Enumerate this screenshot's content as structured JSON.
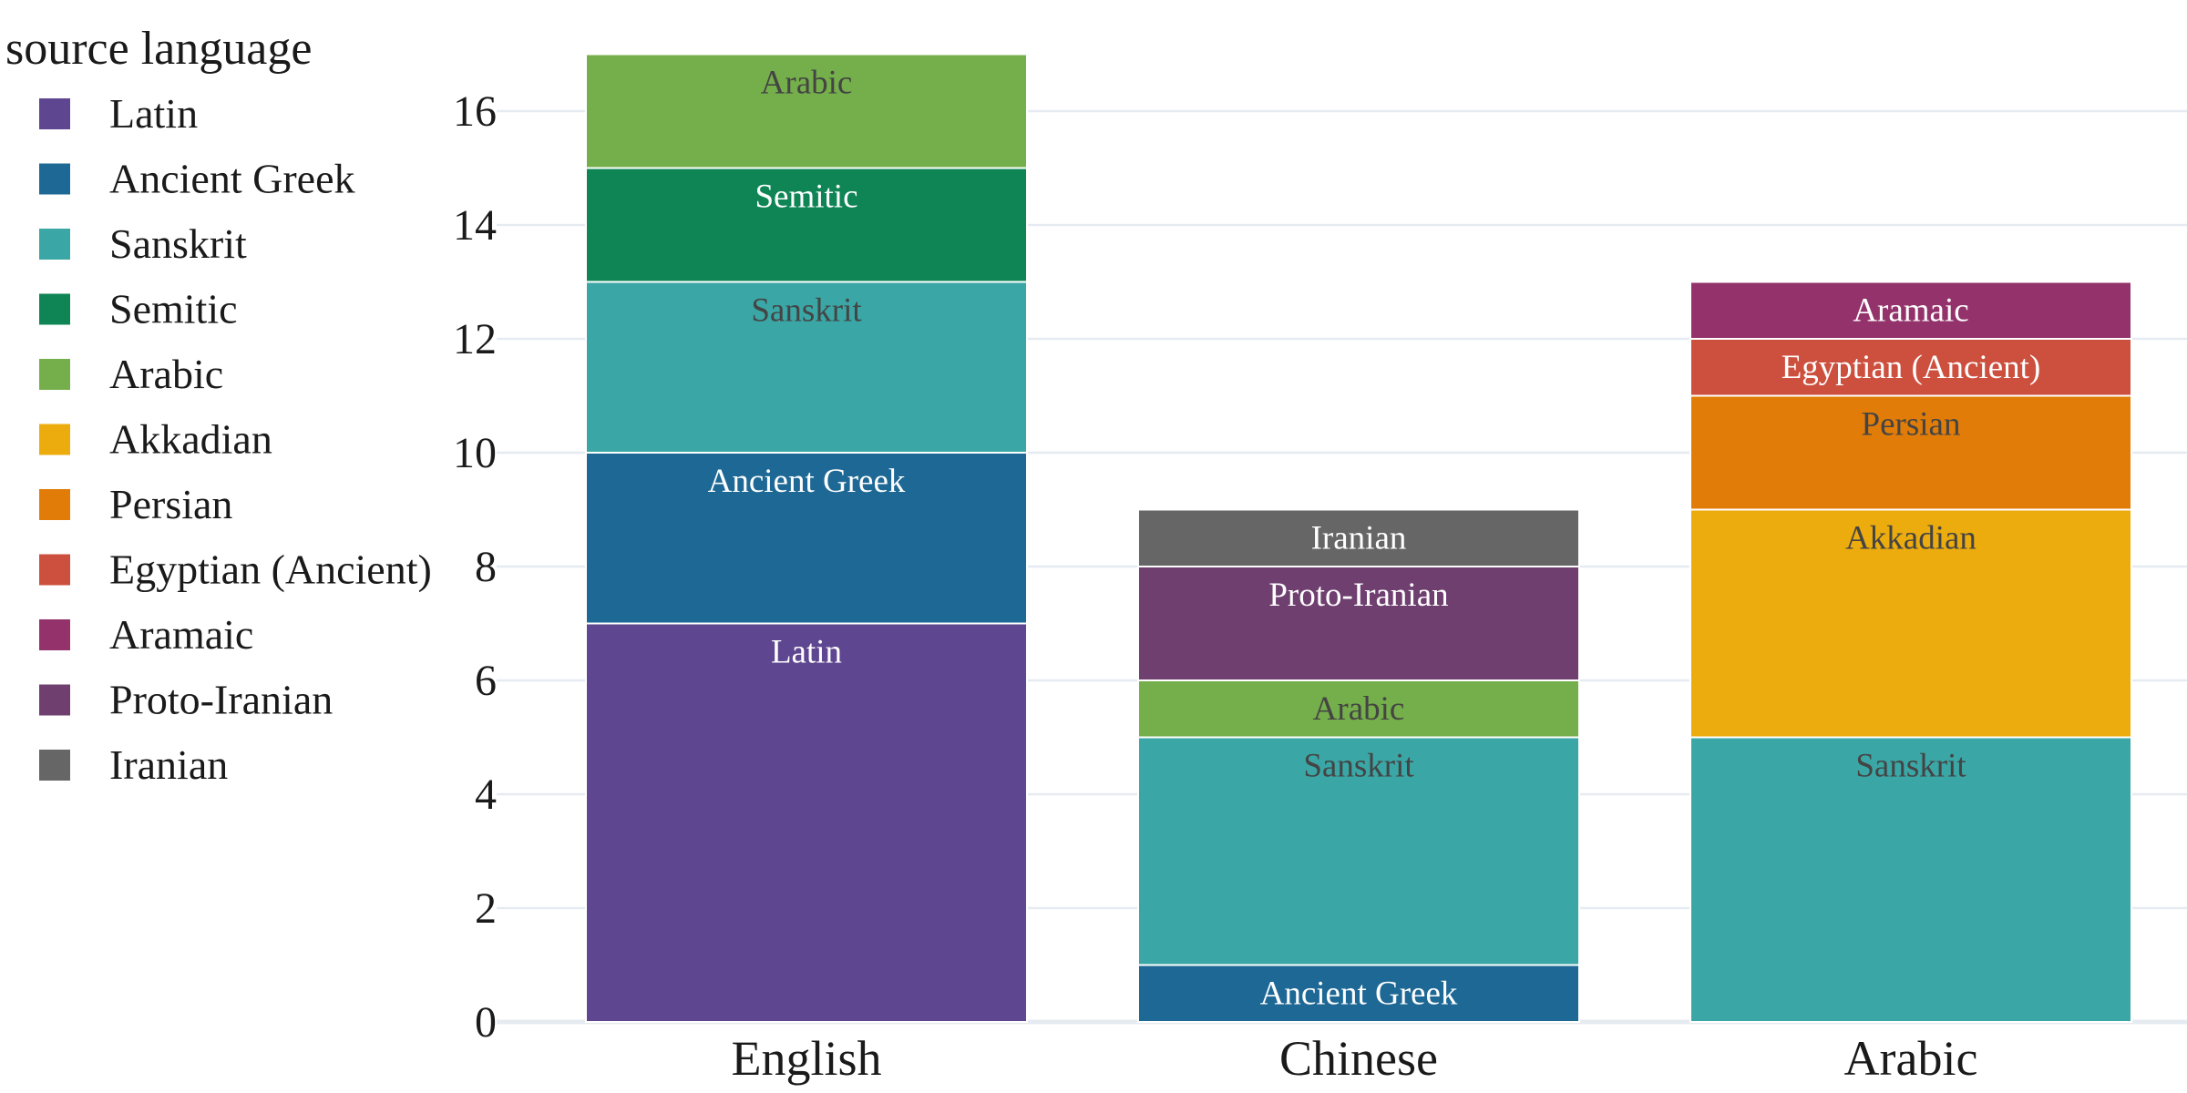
{
  "chart_data": {
    "type": "bar",
    "stacked": true,
    "categories": [
      "English",
      "Chinese",
      "Arabic"
    ],
    "legend_title": "source language",
    "legend_placement": "left",
    "grid": "horizontal",
    "ylim": [
      0,
      17
    ],
    "yticks": [
      0,
      2,
      4,
      6,
      8,
      10,
      12,
      14,
      16
    ],
    "series": [
      {
        "name": "Latin",
        "color": "#5e4690",
        "label_color": "#ffffff",
        "values": [
          7,
          0,
          0
        ]
      },
      {
        "name": "Ancient Greek",
        "color": "#1e6895",
        "label_color": "#ffffff",
        "values": [
          3,
          1,
          0
        ]
      },
      {
        "name": "Sanskrit",
        "color": "#3aa7a6",
        "label_color": "#444444",
        "values": [
          3,
          4,
          5
        ]
      },
      {
        "name": "Semitic",
        "color": "#0f8556",
        "label_color": "#ffffff",
        "values": [
          2,
          0,
          0
        ]
      },
      {
        "name": "Arabic",
        "color": "#75af4b",
        "label_color": "#444444",
        "values": [
          2,
          1,
          0
        ]
      },
      {
        "name": "Akkadian",
        "color": "#edac0d",
        "label_color": "#444444",
        "values": [
          0,
          0,
          4
        ]
      },
      {
        "name": "Persian",
        "color": "#e17c08",
        "label_color": "#444444",
        "values": [
          0,
          0,
          2
        ]
      },
      {
        "name": "Egyptian (Ancient)",
        "color": "#cd503f",
        "label_color": "#ffffff",
        "values": [
          0,
          0,
          1
        ]
      },
      {
        "name": "Aramaic",
        "color": "#94336b",
        "label_color": "#ffffff",
        "values": [
          0,
          0,
          1
        ]
      },
      {
        "name": "Proto-Iranian",
        "color": "#6f3f70",
        "label_color": "#ffffff",
        "values": [
          0,
          2,
          0
        ]
      },
      {
        "name": "Iranian",
        "color": "#666666",
        "label_color": "#ffffff",
        "values": [
          0,
          1,
          0
        ]
      }
    ]
  }
}
